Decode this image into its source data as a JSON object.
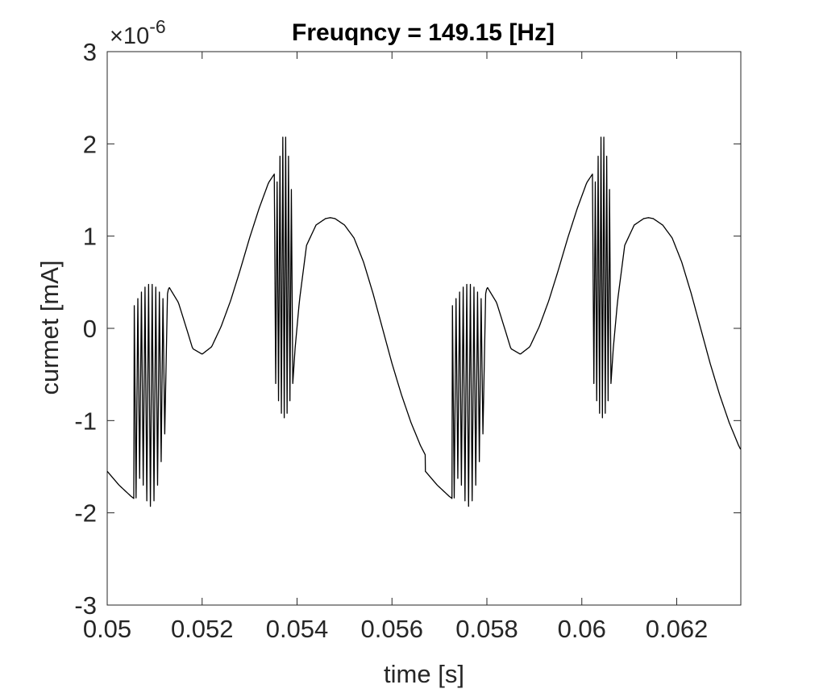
{
  "chart_data": {
    "type": "line",
    "title": "Freuqncy = 149.15 [Hz]",
    "xlabel": "time [s]",
    "ylabel": "curmet [mA]",
    "y_exponent_label": "×10",
    "y_exponent_power": "-6",
    "xlim": [
      0.05,
      0.06335
    ],
    "ylim": [
      -3,
      3
    ],
    "x_ticks": [
      0.05,
      0.052,
      0.054,
      0.056,
      0.058,
      0.06,
      0.062
    ],
    "x_tick_labels": [
      "0.05",
      "0.052",
      "0.054",
      "0.056",
      "0.058",
      "0.06",
      "0.062"
    ],
    "y_ticks": [
      -3,
      -2,
      -1,
      0,
      1,
      2,
      3
    ],
    "y_tick_labels": [
      "-3",
      "-2",
      "-1",
      "0",
      "1",
      "2",
      "3"
    ],
    "grid": false,
    "box": true,
    "colors": {
      "line": "#000000",
      "axes": "#262626",
      "background": "#ffffff"
    },
    "series": [
      {
        "period": 0.006704,
        "x": [
          0.05,
          0.05025,
          0.0505,
          0.0506,
          0.0508,
          0.051,
          0.0512,
          0.0513,
          0.0515,
          0.0517,
          0.0518,
          0.052,
          0.0522,
          0.0524,
          0.0526,
          0.0528,
          0.053,
          0.0532,
          0.0534,
          0.05353,
          0.0536,
          0.0538,
          0.05393,
          0.05405,
          0.0542,
          0.0544,
          0.0546,
          0.0547,
          0.0548,
          0.055,
          0.0552,
          0.0554,
          0.0556,
          0.0558,
          0.056,
          0.0562,
          0.0564,
          0.0566,
          0.0568,
          0.057,
          0.05725,
          0.05735
        ],
        "y": [
          -1.55,
          -1.7,
          -1.82,
          -1.86,
          -1.3,
          -0.5,
          0.2,
          0.45,
          0.28,
          -0.05,
          -0.22,
          -0.28,
          -0.2,
          0.02,
          0.3,
          0.63,
          0.98,
          1.3,
          1.58,
          1.68,
          1.55,
          0.3,
          -0.38,
          0.3,
          0.9,
          1.12,
          1.19,
          1.2,
          1.19,
          1.12,
          0.98,
          0.72,
          0.38,
          0.0,
          -0.38,
          -0.72,
          -1.02,
          -1.27,
          -1.47,
          -1.64,
          -1.82,
          -1.86
        ],
        "oscillations": [
          {
            "start": 0.05057,
            "end": 0.05125,
            "count": 9,
            "low": -1.93,
            "high": 0.48
          },
          {
            "start": 0.05352,
            "end": 0.05394,
            "count": 7,
            "low": -0.97,
            "high": 2.1
          }
        ]
      }
    ]
  }
}
